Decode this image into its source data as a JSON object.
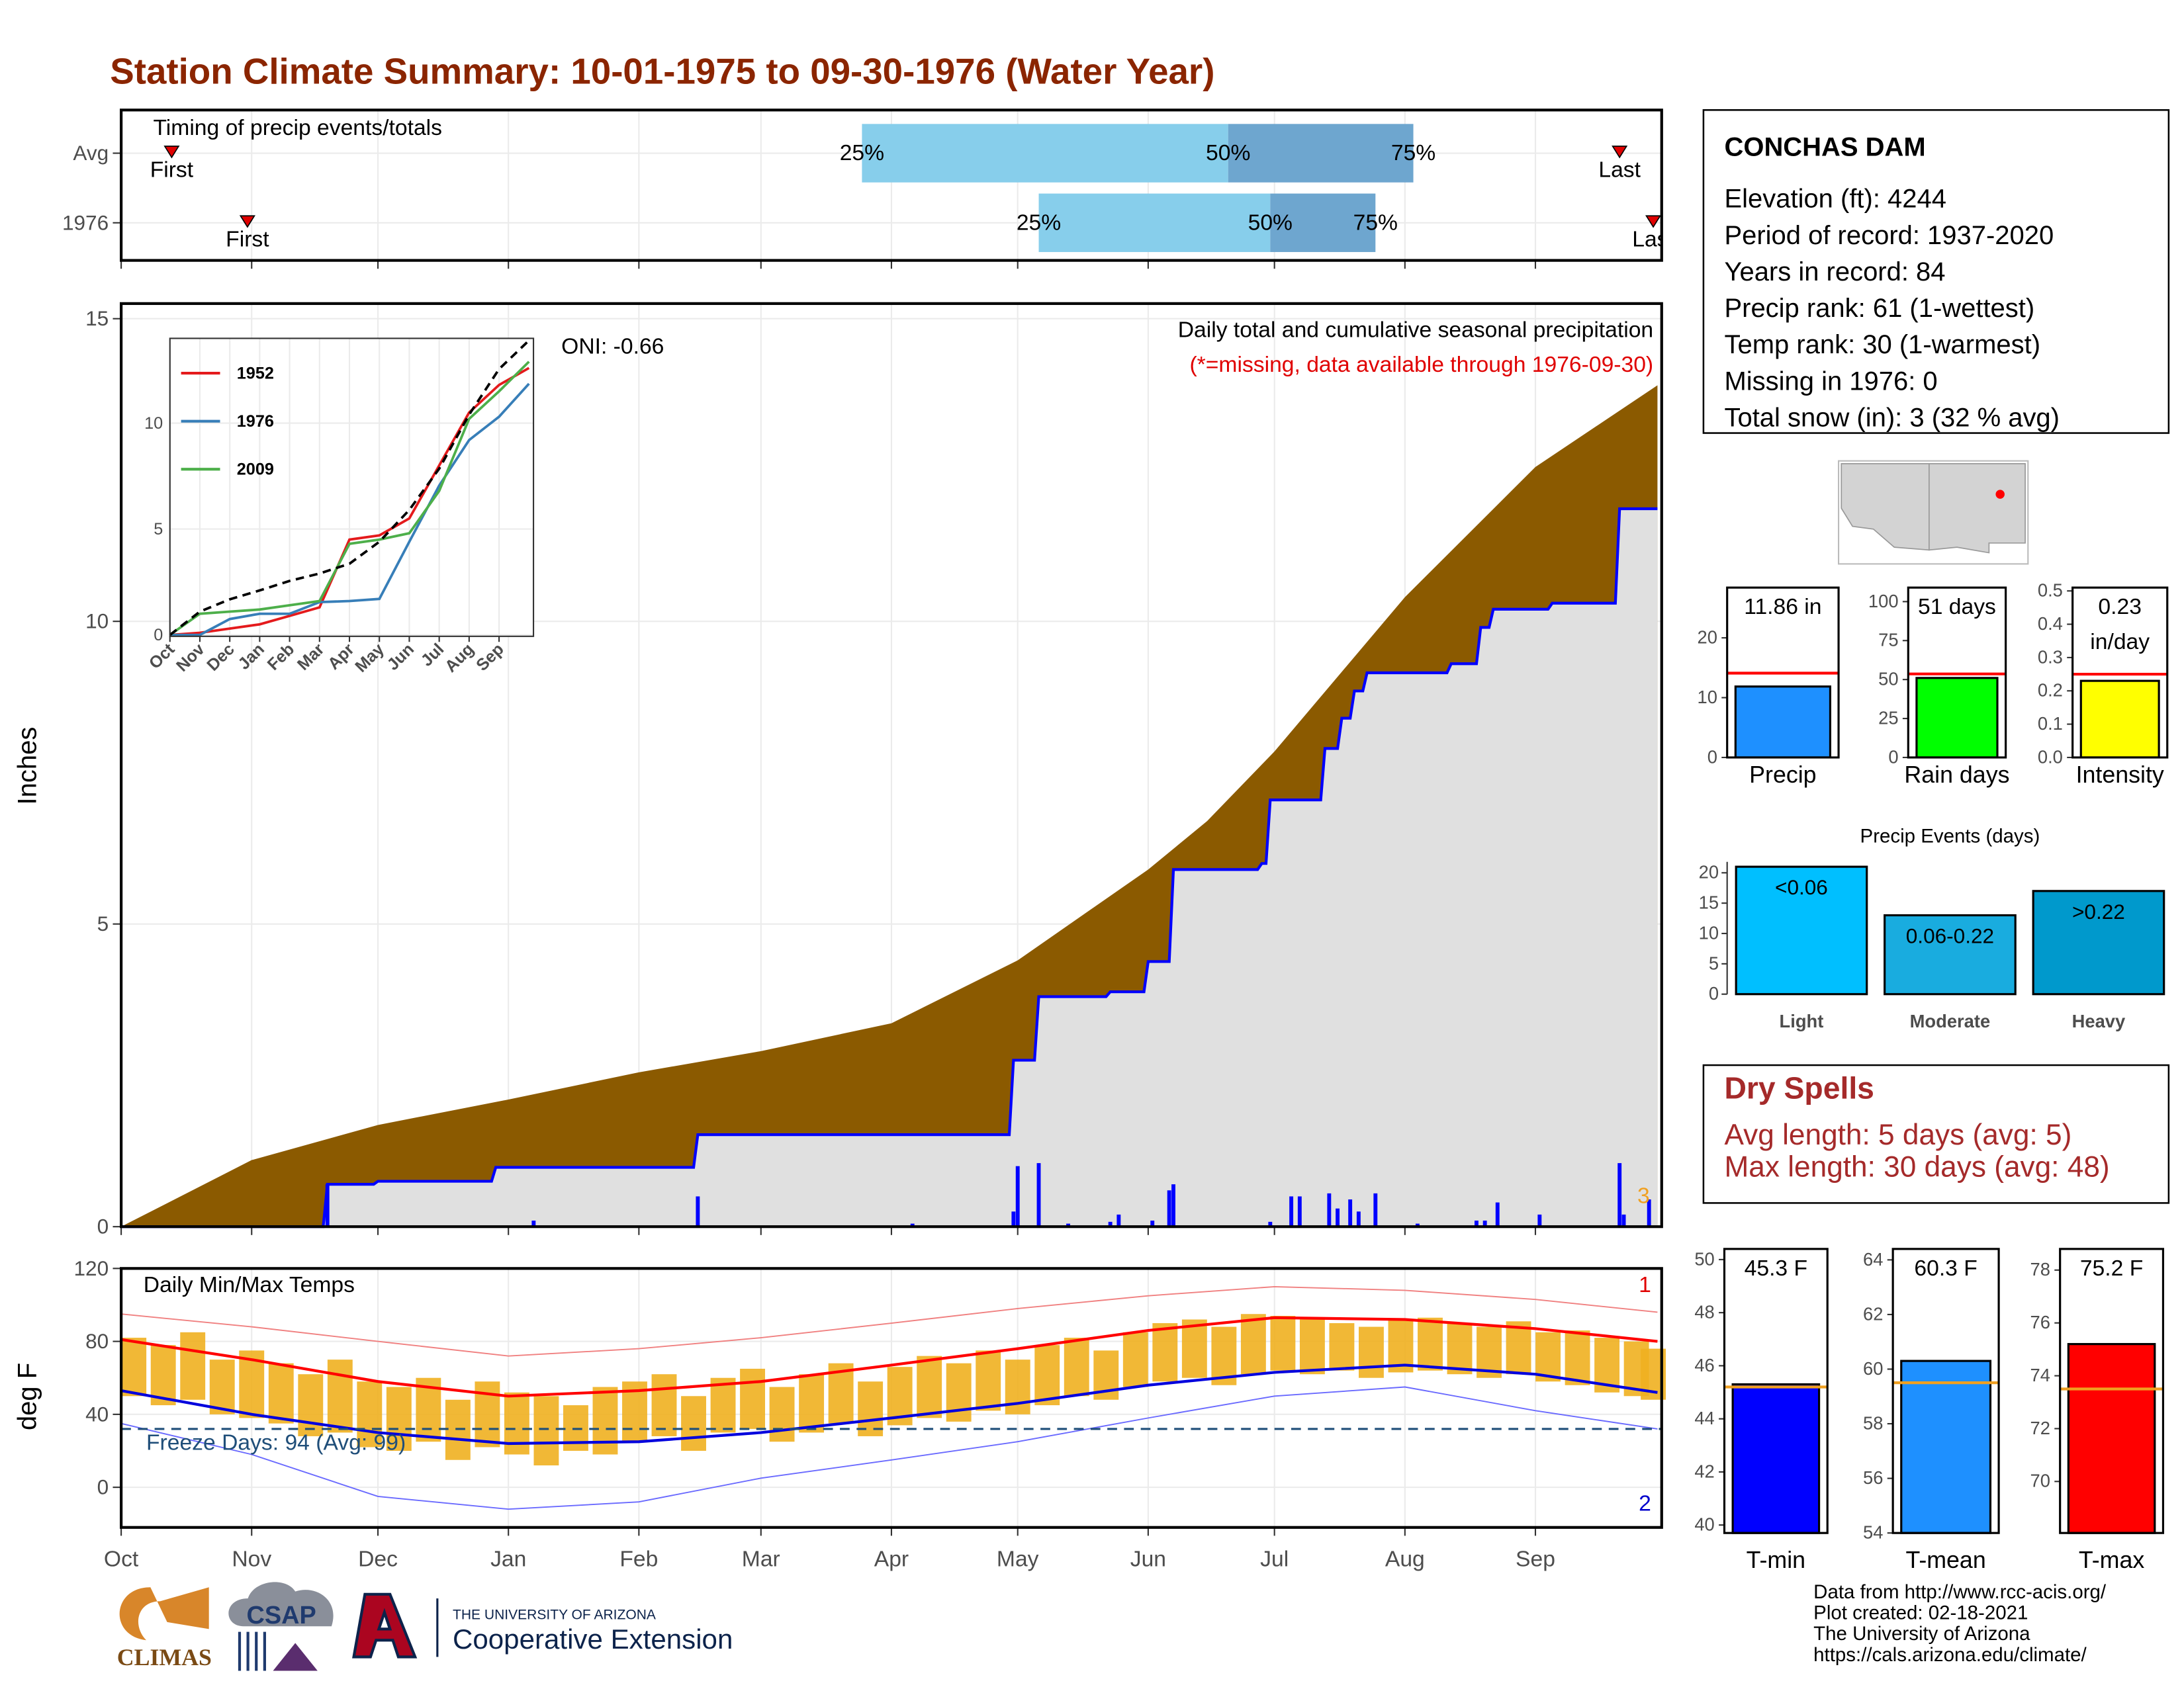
{
  "title": "Station Climate Summary: 10-01-1975 to 09-30-1976 (Water Year)",
  "chart_data": [
    {
      "type": "timing",
      "title": "Timing of precip events/totals",
      "xlim": [
        0,
        366
      ],
      "labels": {
        "first": "First",
        "last": "Last",
        "p25": "25%",
        "p50": "50%",
        "p75": "75%"
      },
      "colors": {
        "low": "#87ceeb",
        "high": "#6ea6cf",
        "marker": "#e00000"
      },
      "rows": [
        {
          "name": "Avg",
          "first": 12,
          "p25": 176,
          "p50": 263,
          "p75": 307,
          "last": 356
        },
        {
          "name": "1976",
          "first": 30,
          "p25": 218,
          "p50": 273,
          "p75": 298,
          "last": 364
        }
      ]
    },
    {
      "type": "precip",
      "subtitle": "Daily total and cumulative seasonal precipitation",
      "note": "(*=missing, data available through 1976-09-30)",
      "oni": "ONI: -0.66",
      "snow_label": "3",
      "ylabel": "Inches",
      "xlim": [
        0,
        366
      ],
      "ylim": [
        0,
        15.25
      ],
      "yticks": [
        0,
        5,
        10,
        15
      ],
      "grid": true,
      "average": {
        "color": "#8b5a00",
        "x": [
          0,
          31,
          61,
          92,
          123,
          152,
          183,
          213,
          244,
          258,
          274,
          305,
          336,
          365
        ],
        "values": [
          0,
          1.1,
          1.68,
          2.1,
          2.55,
          2.9,
          3.36,
          4.4,
          5.9,
          6.7,
          7.85,
          10.4,
          12.55,
          13.9
        ]
      },
      "cumulative": {
        "color": "#0000ff",
        "fill": "#e0e0e0",
        "x": [
          0,
          48,
          49,
          60,
          61,
          88,
          89,
          136,
          137,
          211,
          212,
          217,
          218,
          234,
          235,
          243,
          244,
          249,
          250,
          270,
          271,
          272,
          273,
          285,
          286,
          289,
          290,
          292,
          293,
          295,
          296,
          315,
          316,
          322,
          323,
          325,
          326,
          339,
          340,
          355,
          356,
          365
        ],
        "values": [
          0,
          0,
          0.7,
          0.7,
          0.75,
          0.75,
          0.98,
          0.98,
          1.52,
          1.52,
          2.75,
          2.75,
          3.8,
          3.8,
          3.88,
          3.88,
          4.38,
          4.38,
          5.9,
          5.9,
          6.0,
          6.0,
          7.05,
          7.05,
          7.9,
          7.9,
          8.4,
          8.4,
          8.85,
          8.85,
          9.15,
          9.15,
          9.3,
          9.3,
          9.9,
          9.9,
          10.2,
          10.2,
          10.3,
          10.3,
          11.86,
          11.86
        ]
      },
      "daily": {
        "color": "#0000ff",
        "x": [
          49,
          98,
          137,
          188,
          212,
          213,
          218,
          225,
          235,
          237,
          245,
          249,
          250,
          273,
          278,
          280,
          287,
          289,
          292,
          294,
          298,
          308,
          322,
          324,
          327,
          337,
          356,
          357,
          363
        ],
        "values": [
          0.7,
          0.1,
          0.5,
          0.05,
          0.25,
          1.0,
          1.05,
          0.05,
          0.08,
          0.2,
          0.1,
          0.6,
          0.7,
          0.08,
          0.5,
          0.5,
          0.55,
          0.3,
          0.45,
          0.25,
          0.55,
          0.05,
          0.1,
          0.1,
          0.4,
          0.2,
          1.05,
          0.2,
          0.45
        ]
      }
    },
    {
      "type": "inset_line",
      "xlim": [
        0,
        12.15
      ],
      "ylim": [
        0,
        14
      ],
      "yticks": [
        0,
        5,
        10
      ],
      "xticks": [
        {
          "value": 0,
          "label": "Oct"
        },
        {
          "value": 1,
          "label": "Nov"
        },
        {
          "value": 2,
          "label": "Dec"
        },
        {
          "value": 3,
          "label": "Jan"
        },
        {
          "value": 4,
          "label": "Feb"
        },
        {
          "value": 5,
          "label": "Mar"
        },
        {
          "value": 6,
          "label": "Apr"
        },
        {
          "value": 7,
          "label": "May"
        },
        {
          "value": 8,
          "label": "Jun"
        },
        {
          "value": 9,
          "label": "Jul"
        },
        {
          "value": 10,
          "label": "Aug"
        },
        {
          "value": 11,
          "label": "Sep"
        }
      ],
      "x": [
        0,
        1,
        2,
        3,
        4,
        5,
        6,
        7,
        8,
        9,
        10,
        11,
        12
      ],
      "average": [
        0,
        1.1,
        1.68,
        2.1,
        2.55,
        2.9,
        3.36,
        4.4,
        5.9,
        7.85,
        10.4,
        12.55,
        13.9
      ],
      "series": [
        {
          "name": "1952",
          "color": "#e41a1c",
          "values": [
            0,
            0.1,
            0.3,
            0.5,
            0.9,
            1.3,
            4.5,
            4.7,
            5.5,
            8.0,
            10.5,
            11.8,
            12.6
          ]
        },
        {
          "name": "1976",
          "color": "#377eb8",
          "values": [
            0,
            0,
            0.75,
            1.0,
            1.0,
            1.55,
            1.6,
            1.7,
            4.4,
            7.05,
            9.2,
            10.3,
            11.86
          ]
        },
        {
          "name": "2009",
          "color": "#4daf4a",
          "values": [
            0,
            1.0,
            1.1,
            1.2,
            1.4,
            1.6,
            4.3,
            4.5,
            4.8,
            6.8,
            10.2,
            11.5,
            12.9
          ]
        }
      ]
    },
    {
      "type": "temps",
      "title": "Daily Min/Max Temps",
      "ylabel": "deg F",
      "freeze": 32,
      "freeze_label": "Freeze Days: 94 (Avg: 99)",
      "record_high_label": "1",
      "record_low_label": "2",
      "xlim": [
        0,
        366
      ],
      "ylim": [
        -22,
        120
      ],
      "yticks": [
        0,
        40,
        80,
        120
      ],
      "grid": true,
      "xticks": [
        {
          "value": 0,
          "label": "Oct"
        },
        {
          "value": 31,
          "label": "Nov"
        },
        {
          "value": 61,
          "label": "Dec"
        },
        {
          "value": 92,
          "label": "Jan"
        },
        {
          "value": 123,
          "label": "Feb"
        },
        {
          "value": 152,
          "label": "Mar"
        },
        {
          "value": 183,
          "label": "Apr"
        },
        {
          "value": 213,
          "label": "May"
        },
        {
          "value": 244,
          "label": "Jun"
        },
        {
          "value": 274,
          "label": "Jul"
        },
        {
          "value": 305,
          "label": "Aug"
        },
        {
          "value": 336,
          "label": "Sep"
        }
      ],
      "bar_color": "#f0b020",
      "daily_x": [
        3,
        10,
        17,
        24,
        31,
        38,
        45,
        52,
        59,
        66,
        73,
        80,
        87,
        94,
        101,
        108,
        115,
        122,
        129,
        136,
        143,
        150,
        157,
        164,
        171,
        178,
        185,
        192,
        199,
        206,
        213,
        220,
        227,
        234,
        241,
        248,
        255,
        262,
        269,
        276,
        283,
        290,
        297,
        304,
        311,
        318,
        325,
        332,
        339,
        346,
        353,
        360,
        364
      ],
      "daily_max": [
        82,
        78,
        85,
        70,
        75,
        68,
        62,
        70,
        58,
        55,
        60,
        48,
        58,
        52,
        50,
        45,
        55,
        58,
        62,
        50,
        60,
        65,
        55,
        62,
        68,
        58,
        66,
        72,
        68,
        75,
        70,
        78,
        82,
        75,
        85,
        90,
        92,
        88,
        95,
        94,
        92,
        90,
        88,
        92,
        93,
        90,
        88,
        91,
        85,
        86,
        82,
        80,
        76
      ],
      "daily_min": [
        50,
        45,
        48,
        40,
        38,
        35,
        28,
        30,
        22,
        20,
        25,
        15,
        22,
        18,
        12,
        20,
        18,
        25,
        28,
        20,
        30,
        32,
        25,
        30,
        35,
        28,
        34,
        38,
        36,
        42,
        40,
        45,
        50,
        48,
        55,
        58,
        60,
        56,
        62,
        64,
        62,
        64,
        60,
        63,
        64,
        62,
        60,
        62,
        58,
        56,
        52,
        50,
        48
      ],
      "x": [
        0,
        31,
        61,
        92,
        123,
        152,
        183,
        213,
        244,
        274,
        305,
        336,
        365
      ],
      "series": [
        {
          "name": "avg_max",
          "color": "#ff0000",
          "values": [
            81,
            70,
            58,
            50,
            53,
            58,
            67,
            76,
            86,
            93,
            92,
            87,
            80
          ]
        },
        {
          "name": "avg_min",
          "color": "#0000dd",
          "values": [
            53,
            40,
            30,
            24,
            25,
            30,
            38,
            46,
            56,
            63,
            67,
            62,
            52
          ]
        },
        {
          "name": "record_max",
          "color": "#f08080",
          "values": [
            95,
            88,
            80,
            72,
            76,
            82,
            90,
            98,
            105,
            110,
            108,
            103,
            96
          ]
        },
        {
          "name": "record_min",
          "color": "#6a6aff",
          "values": [
            35,
            18,
            -5,
            -12,
            -8,
            5,
            15,
            25,
            38,
            50,
            55,
            42,
            32
          ]
        }
      ]
    },
    {
      "type": "summary_bar",
      "label": "Precip",
      "values": [
        11.86
      ],
      "value_labels": [
        "11.86 in"
      ],
      "average": 14.1,
      "color": "#1e90ff",
      "avg_color": "#ff0000",
      "ylim": [
        0,
        28.4
      ],
      "yticks": [
        0,
        10,
        20
      ]
    },
    {
      "type": "summary_bar",
      "label": "Rain days",
      "values": [
        51
      ],
      "value_labels": [
        "51 days"
      ],
      "average": 53.6,
      "color": "#00ff00",
      "avg_color": "#ff0000",
      "ylim": [
        0,
        109
      ],
      "yticks": [
        0,
        25,
        50,
        75,
        100
      ]
    },
    {
      "type": "summary_bar",
      "label": "Intensity",
      "values": [
        0.23
      ],
      "value_labels": [
        "0.23 in/day"
      ],
      "average": 0.25,
      "color": "#ffff00",
      "avg_color": "#ff0000",
      "ylim": [
        0,
        0.51
      ],
      "yticks": [
        {
          "value": 0,
          "label": "0.0"
        },
        0.1,
        0.2,
        0.3,
        0.4,
        0.5
      ]
    },
    {
      "type": "events",
      "title": "Precip Events (days)",
      "categories": [
        "Light",
        "Moderate",
        "Heavy"
      ],
      "thresholds": [
        "<0.06",
        "0.06-0.22",
        ">0.22"
      ],
      "values": [
        21,
        13,
        17
      ],
      "colors": [
        "#00bfff",
        "#19acdf",
        "#0099cc"
      ],
      "ylim": [
        0,
        21.8
      ],
      "yticks": [
        0,
        5,
        10,
        15,
        20
      ]
    },
    {
      "type": "summary_bar",
      "label": "T-min",
      "values": [
        45.3
      ],
      "value_labels": [
        "45.3 F"
      ],
      "average": 45.2,
      "color": "#0000ff",
      "avg_color": "#f0a020",
      "ylim": [
        39.7,
        50.4
      ],
      "yticks": [
        40,
        42,
        44,
        46,
        48,
        50
      ]
    },
    {
      "type": "summary_bar",
      "label": "T-mean",
      "values": [
        60.3
      ],
      "value_labels": [
        "60.3 F"
      ],
      "average": 59.5,
      "color": "#1e90ff",
      "avg_color": "#f0a020",
      "ylim": [
        54,
        64.4
      ],
      "yticks": [
        54,
        56,
        58,
        60,
        62,
        64
      ]
    },
    {
      "type": "summary_bar",
      "label": "T-max",
      "values": [
        75.2
      ],
      "value_labels": [
        "75.2 F"
      ],
      "average": 73.5,
      "color": "#ff0000",
      "avg_color": "#f0a020",
      "ylim": [
        68.05,
        78.8
      ],
      "yticks": [
        70,
        72,
        74,
        76,
        78
      ]
    }
  ],
  "station": {
    "name": "CONCHAS DAM",
    "lines": [
      "Elevation (ft): 4244",
      "Period of record: 1937-2020",
      "Years in record: 84",
      "Precip rank: 61 (1-wettest)",
      "Temp rank: 30 (1-warmest)",
      "Missing in 1976: 0",
      "Total snow (in): 3 (32 % avg)"
    ]
  },
  "dry_spells": {
    "title": "Dry Spells",
    "lines": [
      "Avg length: 5 days (avg: 5)",
      "Max length: 30 days (avg: 48)"
    ]
  },
  "footer": [
    "Data from http://www.rcc-acis.org/",
    "Plot created: 02-18-2021",
    "The University of Arizona",
    "https://cals.arizona.edu/climate/"
  ],
  "logos": {
    "climas": "CLIMAS",
    "csap": "CSAP",
    "university": "THE UNIVERSITY OF ARIZONA",
    "extension": "Cooperative Extension"
  }
}
